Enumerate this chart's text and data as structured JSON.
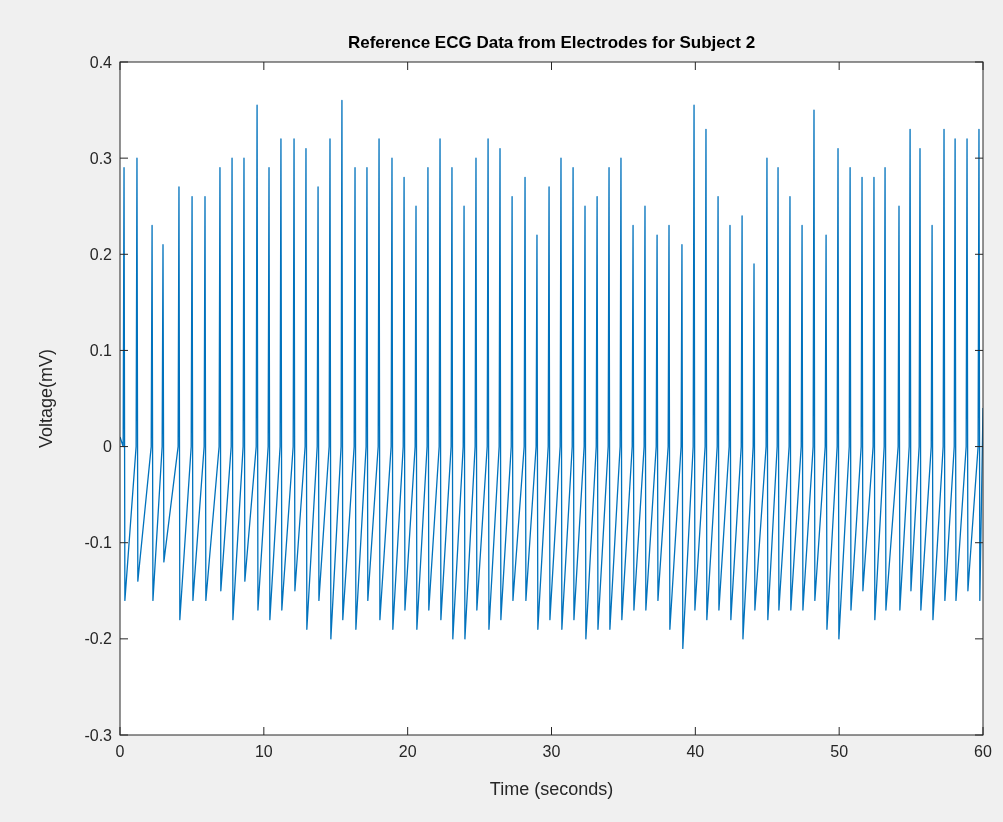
{
  "chart_data": {
    "type": "line",
    "title": "Reference ECG Data from Electrodes for Subject 2",
    "xlabel": "Time (seconds)",
    "ylabel": "Voltage(mV)",
    "xlim": [
      0,
      60
    ],
    "xticks": [
      0,
      10,
      20,
      30,
      40,
      50,
      60
    ],
    "ylim": [
      -0.3,
      0.4
    ],
    "yticks": [
      -0.3,
      -0.2,
      -0.1,
      0,
      0.1,
      0.2,
      0.3,
      0.4
    ],
    "grid": false,
    "x": [
      0,
      0.22,
      0.28,
      0.34,
      1.12,
      1.18,
      1.24,
      2.17,
      2.23,
      2.29,
      2.93,
      2.99,
      3.05,
      4.04,
      4.1,
      4.16,
      4.95,
      5.01,
      5.07,
      5.85,
      5.91,
      5.97,
      6.89,
      6.95,
      7.01,
      7.73,
      7.79,
      7.85,
      8.56,
      8.62,
      8.68,
      9.47,
      9.53,
      9.59,
      10.3,
      10.36,
      10.42,
      11.13,
      11.19,
      11.25,
      12.04,
      12.1,
      12.16,
      12.87,
      12.93,
      12.99,
      13.71,
      13.77,
      13.83,
      14.54,
      14.6,
      14.66,
      15.37,
      15.43,
      15.49,
      16.28,
      16.34,
      16.4,
      17.11,
      17.17,
      17.23,
      17.95,
      18.01,
      18.07,
      18.85,
      18.91,
      18.97,
      19.69,
      19.75,
      19.81,
      20.52,
      20.58,
      20.64,
      21.35,
      21.41,
      21.47,
      22.19,
      22.25,
      22.31,
      23.02,
      23.08,
      23.14,
      23.86,
      23.92,
      23.98,
      24.69,
      24.75,
      24.81,
      25.53,
      25.59,
      25.65,
      26.36,
      26.42,
      26.48,
      27.2,
      27.26,
      27.32,
      28.1,
      28.16,
      28.22,
      28.93,
      28.99,
      29.05,
      29.77,
      29.83,
      29.89,
      30.6,
      30.66,
      30.72,
      31.44,
      31.5,
      31.56,
      32.27,
      32.33,
      32.39,
      33.11,
      33.17,
      33.23,
      33.94,
      34.0,
      34.06,
      34.77,
      34.83,
      34.89,
      35.61,
      35.67,
      35.73,
      36.44,
      36.5,
      36.56,
      37.28,
      37.34,
      37.4,
      38.11,
      38.17,
      38.23,
      39.01,
      39.07,
      39.13,
      39.85,
      39.91,
      39.97,
      40.68,
      40.74,
      40.8,
      41.52,
      41.58,
      41.64,
      42.35,
      42.41,
      42.47,
      43.19,
      43.25,
      43.31,
      44.02,
      44.08,
      44.14,
      44.92,
      44.98,
      45.04,
      45.69,
      45.75,
      45.81,
      46.52,
      46.58,
      46.64,
      47.36,
      47.42,
      47.48,
      48.19,
      48.25,
      48.31,
      49.03,
      49.09,
      49.15,
      49.86,
      49.92,
      49.98,
      50.7,
      50.76,
      50.82,
      51.53,
      51.59,
      51.65,
      52.36,
      52.42,
      52.48,
      53.13,
      53.19,
      53.25,
      54.1,
      54.16,
      54.22,
      54.87,
      54.93,
      54.99,
      55.56,
      55.62,
      55.68,
      56.4,
      56.46,
      56.52,
      57.23,
      57.29,
      57.35,
      58.0,
      58.06,
      58.12,
      58.83,
      58.89,
      58.95,
      59.66,
      59.72,
      59.78,
      60
    ],
    "series": [
      {
        "color": "#0072bd",
        "values": [
          0.01,
          0,
          0.29,
          -0.16,
          0,
          0.3,
          -0.14,
          0,
          0.23,
          -0.16,
          0,
          0.21,
          -0.12,
          0,
          0.27,
          -0.18,
          0,
          0.26,
          -0.16,
          0,
          0.26,
          -0.16,
          0,
          0.29,
          -0.15,
          0,
          0.3,
          -0.18,
          0,
          0.3,
          -0.14,
          0,
          0.355,
          -0.17,
          0,
          0.29,
          -0.18,
          0,
          0.32,
          -0.17,
          0,
          0.32,
          -0.15,
          0,
          0.31,
          -0.19,
          0,
          0.27,
          -0.16,
          0,
          0.32,
          -0.2,
          0,
          0.36,
          -0.18,
          0,
          0.29,
          -0.19,
          0,
          0.29,
          -0.16,
          0,
          0.32,
          -0.18,
          0,
          0.3,
          -0.19,
          0,
          0.28,
          -0.17,
          0,
          0.25,
          -0.19,
          0,
          0.29,
          -0.17,
          0,
          0.32,
          -0.18,
          0,
          0.29,
          -0.2,
          0,
          0.25,
          -0.2,
          0,
          0.3,
          -0.17,
          0,
          0.32,
          -0.19,
          0,
          0.31,
          -0.18,
          0,
          0.26,
          -0.16,
          0,
          0.28,
          -0.16,
          0,
          0.22,
          -0.19,
          0,
          0.27,
          -0.18,
          0,
          0.3,
          -0.19,
          0,
          0.29,
          -0.18,
          0,
          0.25,
          -0.2,
          0,
          0.26,
          -0.19,
          0,
          0.29,
          -0.19,
          0,
          0.3,
          -0.18,
          0,
          0.23,
          -0.17,
          0,
          0.25,
          -0.17,
          0,
          0.22,
          -0.16,
          0,
          0.23,
          -0.19,
          0,
          0.21,
          -0.21,
          0,
          0.355,
          -0.17,
          0,
          0.33,
          -0.18,
          0,
          0.26,
          -0.17,
          0,
          0.23,
          -0.18,
          0,
          0.24,
          -0.2,
          0,
          0.19,
          -0.17,
          0,
          0.3,
          -0.18,
          0,
          0.29,
          -0.17,
          0,
          0.26,
          -0.17,
          0,
          0.23,
          -0.17,
          0,
          0.35,
          -0.16,
          0,
          0.22,
          -0.19,
          0,
          0.31,
          -0.2,
          0,
          0.29,
          -0.17,
          0,
          0.28,
          -0.15,
          0,
          0.28,
          -0.18,
          0,
          0.29,
          -0.17,
          0,
          0.25,
          -0.17,
          0,
          0.33,
          -0.15,
          0,
          0.31,
          -0.17,
          0,
          0.23,
          -0.18,
          0,
          0.33,
          -0.16,
          0,
          0.32,
          -0.16,
          0,
          0.32,
          -0.15,
          0,
          0.33,
          -0.16,
          0.04
        ]
      }
    ]
  }
}
